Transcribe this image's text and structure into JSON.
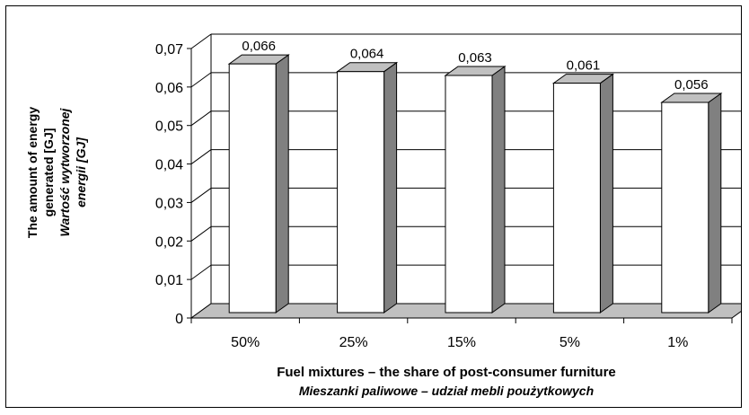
{
  "chart_data": {
    "type": "bar",
    "title": "",
    "categories": [
      "50%",
      "25%",
      "15%",
      "5%",
      "1%"
    ],
    "values": [
      0.066,
      0.064,
      0.063,
      0.061,
      0.056
    ],
    "data_labels": [
      "0,066",
      "0,064",
      "0,063",
      "0,061",
      "0,056"
    ],
    "ylim": [
      0,
      0.07
    ],
    "yticks": [
      0,
      0.01,
      0.02,
      0.03,
      0.04,
      0.05,
      0.06,
      0.07
    ],
    "ytick_labels": [
      "0",
      "0,01",
      "0,02",
      "0,03",
      "0,04",
      "0,05",
      "0,06",
      "0,07"
    ],
    "xlabel": "Fuel mixtures – the share of post-consumer furniture",
    "xlabel_sub": "Mieszanki paliwowe – udział mebli poużytkowych",
    "ylabel_lines": [
      "The amount of energy",
      "generated [GJ]"
    ],
    "ylabel_sub_lines": [
      "Wartość wytworzonej",
      "energii [GJ]"
    ],
    "grid": true,
    "style": "3d",
    "colors": {
      "bar_front": "#ffffff",
      "bar_side": "#808080",
      "bar_top": "#c0c0c0",
      "floor": "#c0c0c0",
      "grid": "#000000"
    }
  }
}
